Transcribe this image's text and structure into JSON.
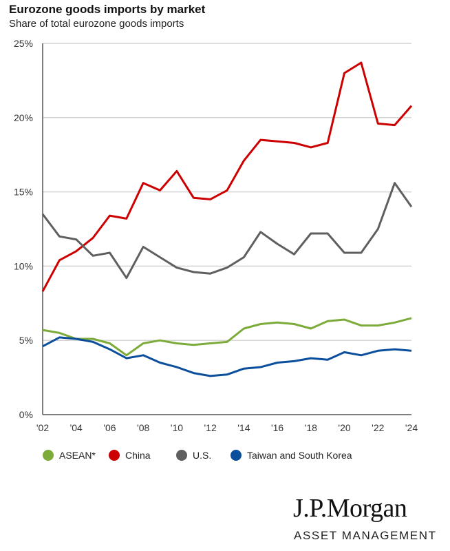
{
  "chart_data": {
    "type": "line",
    "title": "Eurozone goods imports by market",
    "subtitle": "Share of total eurozone goods imports",
    "xlabel": "",
    "ylabel": "",
    "x": [
      "'02",
      "'03",
      "'04",
      "'05",
      "'06",
      "'07",
      "'08",
      "'09",
      "'10",
      "'11",
      "'12",
      "'13",
      "'14",
      "'15",
      "'16",
      "'17",
      "'18",
      "'19",
      "'20",
      "'21",
      "'22",
      "'23",
      "'24"
    ],
    "x_tick_labels": [
      "'02",
      "'04",
      "'06",
      "'08",
      "'10",
      "'12",
      "'14",
      "'16",
      "'18",
      "'20",
      "'22",
      "'24"
    ],
    "y_tick_labels": [
      "0%",
      "5%",
      "10%",
      "15%",
      "20%",
      "25%"
    ],
    "ylim": [
      0,
      25
    ],
    "grid": "horizontal",
    "legend_position": "bottom",
    "series": [
      {
        "name": "ASEAN*",
        "color": "#7cab3a",
        "values": [
          5.7,
          5.5,
          5.1,
          5.1,
          4.8,
          4.0,
          4.8,
          5.0,
          4.8,
          4.7,
          4.8,
          4.9,
          5.8,
          6.1,
          6.2,
          6.1,
          5.8,
          6.3,
          6.4,
          6.0,
          6.0,
          6.2,
          6.5
        ]
      },
      {
        "name": "China",
        "color": "#cc0000",
        "values": [
          8.3,
          10.4,
          11.0,
          11.9,
          13.4,
          13.2,
          15.6,
          15.1,
          16.4,
          14.6,
          14.5,
          15.1,
          17.1,
          18.5,
          18.4,
          18.3,
          18.0,
          18.3,
          23.0,
          23.7,
          19.6,
          19.5,
          20.8
        ]
      },
      {
        "name": "U.S.",
        "color": "#5f5f5f",
        "values": [
          13.5,
          12.0,
          11.8,
          10.7,
          10.9,
          9.2,
          11.3,
          10.6,
          9.9,
          9.6,
          9.5,
          9.9,
          10.6,
          12.3,
          11.5,
          10.8,
          12.2,
          12.2,
          10.9,
          10.9,
          12.5,
          15.6,
          14.0
        ]
      },
      {
        "name": "Taiwan and South Korea",
        "color": "#0b4f9c",
        "values": [
          4.6,
          5.2,
          5.1,
          4.9,
          4.4,
          3.8,
          4.0,
          3.5,
          3.2,
          2.8,
          2.6,
          2.7,
          3.1,
          3.2,
          3.5,
          3.6,
          3.8,
          3.7,
          4.2,
          4.0,
          4.3,
          4.4,
          4.3
        ]
      }
    ]
  },
  "logo": {
    "name": "J.P.Morgan",
    "tagline": "ASSET MANAGEMENT"
  }
}
